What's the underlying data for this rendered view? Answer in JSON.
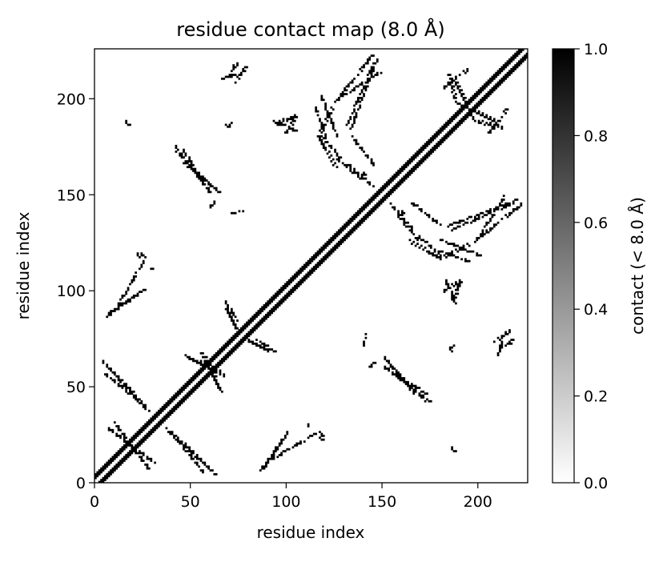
{
  "chart_data": {
    "type": "heatmap",
    "title": "residue contact map (8.0 Å)",
    "xlabel": "residue index",
    "ylabel": "residue index",
    "n_residues": 226,
    "xlim": [
      0,
      226
    ],
    "ylim": [
      0,
      226
    ],
    "x_ticks": [
      "0",
      "50",
      "100",
      "150",
      "200"
    ],
    "y_ticks": [
      "0",
      "50",
      "100",
      "150",
      "200"
    ],
    "colorbar": {
      "label": "contact (< 8.0 Å)",
      "range": [
        0.0,
        1.0
      ],
      "ticks": [
        "0.0",
        "0.2",
        "0.4",
        "0.6",
        "0.8",
        "1.0"
      ]
    },
    "colormap": [
      "#ffffff",
      "#000000"
    ],
    "diagonal_band_halfwidth": 4,
    "contacts": [
      [
        1,
        1,
        1,
        1,
        1,
        1,
        0,
        0,
        1
      ],
      [
        1,
        1,
        1,
        1,
        1,
        1,
        0,
        0,
        1
      ],
      [
        1,
        1,
        1,
        1,
        1,
        1,
        0,
        0,
        1
      ],
      [
        1,
        1,
        1,
        0,
        0,
        1,
        0,
        0,
        1
      ],
      [
        1,
        1,
        1,
        0,
        0,
        1,
        0,
        0,
        1
      ]
    ],
    "contact_segments": [
      [
        4,
        62,
        20,
        46
      ],
      [
        10,
        30,
        28,
        6
      ],
      [
        12,
        92,
        26,
        116
      ],
      [
        16,
        187,
        16,
        187
      ],
      [
        22,
        118,
        24,
        118
      ],
      [
        37,
        27,
        60,
        6
      ],
      [
        40,
        25,
        56,
        5
      ],
      [
        42,
        174,
        56,
        155
      ],
      [
        46,
        172,
        60,
        150
      ],
      [
        47,
        65,
        66,
        57
      ],
      [
        49,
        64,
        67,
        55
      ],
      [
        60,
        143,
        62,
        145
      ],
      [
        68,
        93,
        74,
        84
      ],
      [
        68,
        185,
        70,
        185
      ],
      [
        70,
        211,
        74,
        217
      ],
      [
        72,
        214,
        72,
        216
      ],
      [
        80,
        73,
        90,
        68
      ],
      [
        86,
        5,
        98,
        22
      ],
      [
        88,
        7,
        100,
        25
      ],
      [
        94,
        186,
        104,
        190
      ],
      [
        111,
        29,
        111,
        29
      ],
      [
        117,
        22,
        118,
        24
      ],
      [
        115,
        194,
        120,
        180
      ],
      [
        118,
        200,
        126,
        180
      ],
      [
        131,
        185,
        145,
        217
      ],
      [
        133,
        183,
        147,
        220
      ],
      [
        134,
        179,
        146,
        164
      ],
      [
        140,
        160,
        141,
        160
      ],
      [
        141,
        76,
        140,
        71
      ],
      [
        151,
        64,
        166,
        46
      ],
      [
        153,
        61,
        172,
        42
      ],
      [
        154,
        144,
        165,
        132
      ],
      [
        158,
        138,
        169,
        125
      ],
      [
        164,
        125,
        180,
        116
      ],
      [
        169,
        127,
        180,
        118
      ],
      [
        180,
        116,
        195,
        123
      ],
      [
        185,
        68,
        187,
        70
      ],
      [
        186,
        17,
        186,
        17
      ],
      [
        182,
        99,
        190,
        104
      ],
      [
        183,
        104,
        188,
        92
      ],
      [
        182,
        205,
        194,
        214
      ],
      [
        188,
        197,
        208,
        188
      ],
      [
        200,
        187,
        212,
        184
      ],
      [
        198,
        124,
        214,
        149
      ],
      [
        202,
        128,
        222,
        144
      ],
      [
        208,
        72,
        216,
        78
      ],
      [
        210,
        66,
        212,
        72
      ]
    ]
  }
}
